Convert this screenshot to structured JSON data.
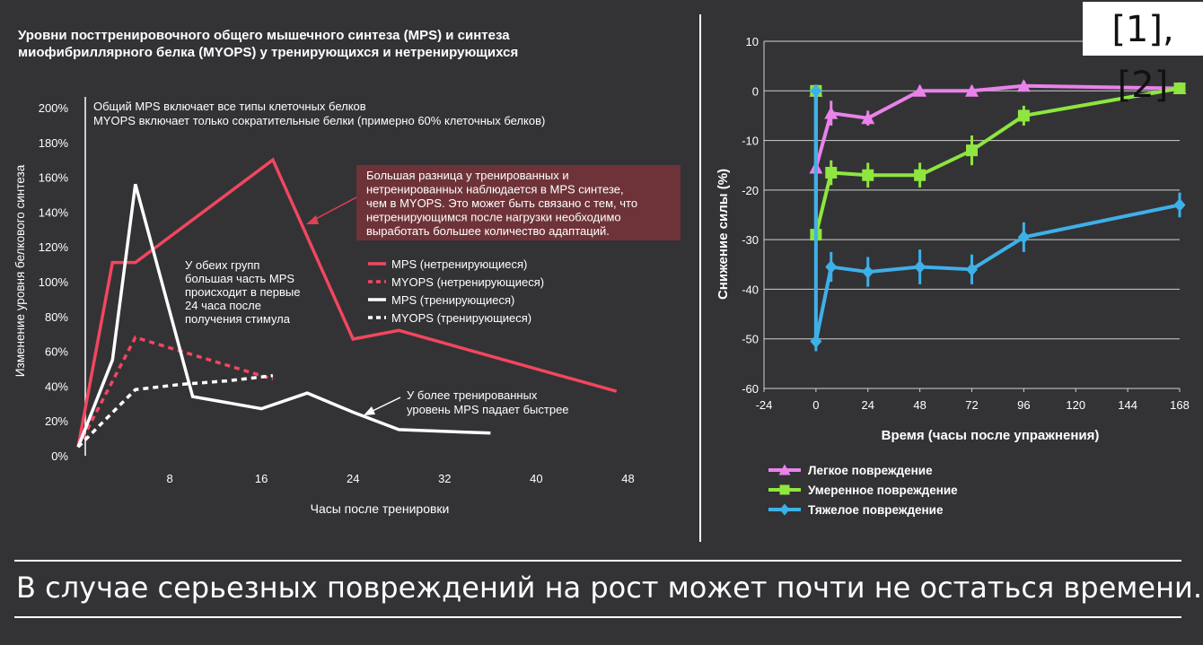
{
  "reference": "[1], [2]",
  "caption": "В случае серьезных повреждений на рост может почти не остаться времени.",
  "chart_data": [
    {
      "type": "line",
      "title": "Уровни посттренировочного общего мышечного синтеза (MPS) и синтеза миофибриллярного белка (MYOPS) у тренирующихся и нетренирующихся",
      "title_lines": [
        "Уровни посттренировочного общего мышечного синтеза (MPS) и синтеза",
        "миофибриллярного белка (MYOPS) у тренирующихся и нетренирующихся"
      ],
      "note_lines": [
        "Общий MPS включает все типы клеточных белков",
        "MYOPS включает только сократительные белки (примерно 60% клеточных белков)"
      ],
      "xlabel": "Часы после тренировки",
      "ylabel": "Изменение уровня белкового синтеза",
      "x_ticks": [
        8,
        16,
        24,
        32,
        40,
        48
      ],
      "y_ticks": [
        "0%",
        "20%",
        "40%",
        "60%",
        "80%",
        "100%",
        "120%",
        "140%",
        "160%",
        "180%",
        "200%"
      ],
      "xlim": [
        0,
        50
      ],
      "ylim": [
        0,
        200
      ],
      "series": [
        {
          "name": "MPS (нетренирующиеся)",
          "color": "#f2465f",
          "style": "solid",
          "x": [
            0,
            3,
            5,
            17,
            24,
            28,
            47
          ],
          "y": [
            5,
            111,
            111,
            170,
            67,
            72,
            37
          ]
        },
        {
          "name": "MYOPS (нетренирующиеся)",
          "color": "#f2465f",
          "style": "dashed",
          "x": [
            0,
            5,
            9,
            17
          ],
          "y": [
            5,
            68,
            60,
            44
          ]
        },
        {
          "name": "MPS (тренирующиеся)",
          "color": "#ffffff",
          "style": "solid",
          "x": [
            0,
            3,
            5,
            10,
            16,
            20,
            24,
            28,
            36
          ],
          "y": [
            5,
            55,
            156,
            34,
            27,
            36,
            25,
            15,
            13
          ]
        },
        {
          "name": "MYOPS (тренирующиеся)",
          "color": "#ffffff",
          "style": "dashed",
          "x": [
            0,
            5,
            9,
            13,
            17
          ],
          "y": [
            5,
            38,
            41,
            43,
            46
          ]
        }
      ],
      "legend_position": "center-right",
      "annotations": [
        {
          "lines": [
            "Большая разница у тренированных и",
            "нетренированных наблюдается в MPS синтезе,",
            "чем в MYOPS. Это может быть связано с тем, что",
            "нетренирующимся после нагрузки необходимо",
            "выработать большее количество адаптаций."
          ],
          "boxed": true,
          "color": "#e35060"
        },
        {
          "lines": [
            "У обеих групп",
            "большая часть MPS",
            "происходит в первые",
            "24 часа после",
            "получения стимула"
          ],
          "boxed": false,
          "color": "#ffffff"
        },
        {
          "lines": [
            "У более тренированных",
            "уровень MPS падает быстрее"
          ],
          "boxed": false,
          "color": "#ffffff"
        }
      ]
    },
    {
      "type": "line",
      "xlabel": "Время (часы после упражнения)",
      "ylabel": "Снижение силы (%)",
      "x_ticks": [
        -24,
        0,
        24,
        48,
        72,
        96,
        120,
        144,
        168
      ],
      "y_ticks": [
        10,
        0,
        -10,
        -20,
        -30,
        -40,
        -50,
        -60
      ],
      "xlim": [
        -24,
        168
      ],
      "ylim": [
        -60,
        10
      ],
      "grid": true,
      "series": [
        {
          "name": "Легкое повреждение",
          "color": "#ea82ea",
          "marker": "triangle",
          "x": [
            0,
            0,
            7,
            24,
            48,
            72,
            96,
            168
          ],
          "y": [
            0,
            -15.5,
            -4.5,
            -5.5,
            0,
            0,
            1,
            0.5
          ],
          "err": [
            0,
            1.5,
            2.5,
            1.5,
            1,
            1,
            1,
            1
          ]
        },
        {
          "name": "Умеренное повреждение",
          "color": "#8ee63e",
          "marker": "square",
          "x": [
            0,
            0,
            7,
            24,
            48,
            72,
            96,
            168
          ],
          "y": [
            0,
            -29,
            -16.5,
            -17,
            -17,
            -12,
            -5,
            0.5
          ],
          "err": [
            0,
            1.5,
            2.5,
            2.5,
            2.5,
            3,
            2,
            1
          ]
        },
        {
          "name": "Тяжелое повреждение",
          "color": "#3eb0e8",
          "marker": "diamond",
          "x": [
            0,
            0,
            7,
            24,
            48,
            72,
            96,
            168
          ],
          "y": [
            0,
            -50.5,
            -35.5,
            -36.5,
            -35.5,
            -36,
            -29.5,
            -23
          ],
          "err": [
            0,
            2,
            3,
            3,
            3.5,
            3,
            3,
            2.5
          ]
        }
      ],
      "legend_position": "bottom-left"
    }
  ]
}
